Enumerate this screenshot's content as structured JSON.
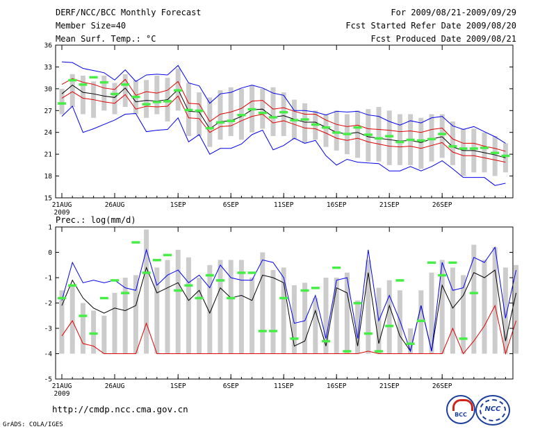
{
  "header": {
    "title": "DERF/NCC/BCC Monthly Forecast",
    "member": "Member Size=40",
    "variable": "Mean Surf. Temp.: °C",
    "period": "For 2009/08/21-2009/09/29",
    "started": "Fcst Started Refer Date 2009/08/20",
    "produced": "Fcst Produced Date 2009/08/21"
  },
  "footer": {
    "url": "http://cmdp.ncc.cma.gov.cn",
    "grads": "GrADS: COLA/IGES",
    "logo1_text": "BCC",
    "logo2_text": "NCC"
  },
  "colors": {
    "bar": "#cccccc",
    "mean": "#000000",
    "spread": "#e00000",
    "envelope": "#0000ee",
    "obs": "#44ee44"
  },
  "chart_data": [
    {
      "type": "line",
      "title": "Mean Surf. Temp.: °C",
      "ylim": [
        15,
        36
      ],
      "yticks": [
        "15",
        "18",
        "21",
        "24",
        "27",
        "30",
        "33",
        "36"
      ],
      "xticks": [
        {
          "day": 0,
          "label": "21AUG",
          "sub": "2009"
        },
        {
          "day": 5,
          "label": "26AUG"
        },
        {
          "day": 11,
          "label": "1SEP"
        },
        {
          "day": 16,
          "label": "6SEP"
        },
        {
          "day": 21,
          "label": "11SEP"
        },
        {
          "day": 26,
          "label": "16SEP"
        },
        {
          "day": 31,
          "label": "21SEP"
        },
        {
          "day": 36,
          "label": "26SEP"
        }
      ],
      "days": 40,
      "series": [
        {
          "name": "mean",
          "values": [
            29.3,
            30.5,
            29.5,
            29.3,
            29.0,
            28.8,
            30.1,
            28.2,
            28.4,
            28.3,
            28.5,
            29.9,
            26.9,
            26.8,
            24.5,
            25.5,
            25.6,
            26.2,
            27.1,
            27.2,
            26.1,
            26.3,
            25.8,
            25.4,
            25.4,
            24.7,
            24.0,
            23.8,
            24.0,
            23.4,
            23.2,
            23.0,
            22.8,
            22.9,
            22.6,
            23.1,
            23.4,
            22.0,
            21.5,
            21.5,
            21.2,
            20.9,
            20.5
          ]
        },
        {
          "name": "upper",
          "values": [
            30.6,
            31.4,
            30.9,
            30.6,
            30.1,
            29.9,
            31.3,
            29.1,
            29.6,
            29.4,
            29.8,
            31.0,
            28.0,
            27.9,
            25.5,
            26.5,
            26.8,
            27.3,
            28.3,
            28.4,
            27.2,
            27.4,
            26.9,
            26.5,
            26.5,
            25.7,
            25.1,
            24.8,
            25.0,
            24.5,
            24.4,
            24.3,
            24.1,
            24.2,
            24.0,
            24.4,
            24.6,
            23.1,
            22.5,
            22.5,
            22.1,
            21.8,
            21.4
          ]
        },
        {
          "name": "lower",
          "values": [
            28.7,
            29.6,
            28.7,
            28.5,
            28.2,
            28.0,
            29.2,
            27.2,
            27.6,
            27.5,
            27.6,
            29.0,
            26.0,
            25.9,
            24.0,
            24.8,
            24.9,
            25.6,
            26.2,
            26.5,
            25.3,
            25.6,
            25.1,
            24.6,
            24.5,
            23.9,
            23.2,
            22.9,
            23.2,
            22.7,
            22.4,
            22.1,
            22.0,
            22.1,
            21.8,
            22.2,
            22.6,
            21.3,
            20.8,
            20.8,
            20.5,
            20.2,
            19.9
          ]
        },
        {
          "name": "max",
          "values": [
            33.7,
            33.6,
            32.8,
            32.5,
            32.2,
            31.2,
            32.6,
            31.0,
            31.9,
            32.0,
            31.9,
            33.2,
            30.8,
            30.4,
            28.0,
            29.3,
            29.5,
            30.1,
            30.5,
            30.1,
            29.4,
            29.1,
            27.0,
            27.0,
            26.8,
            26.4,
            26.9,
            26.8,
            26.9,
            26.4,
            26.2,
            25.5,
            25.0,
            25.6,
            25.3,
            26.0,
            26.2,
            24.9,
            24.4,
            24.8,
            24.1,
            23.4,
            22.5
          ]
        },
        {
          "name": "min",
          "values": [
            26.2,
            27.6,
            24.0,
            24.5,
            25.1,
            25.7,
            26.5,
            26.6,
            24.1,
            24.3,
            24.4,
            26.0,
            22.7,
            23.7,
            21.0,
            21.8,
            21.8,
            22.4,
            23.7,
            24.3,
            21.6,
            22.2,
            23.2,
            22.5,
            22.9,
            20.8,
            19.5,
            20.3,
            19.9,
            19.8,
            19.7,
            18.7,
            18.7,
            19.3,
            18.7,
            19.3,
            20.1,
            19.0,
            17.8,
            17.8,
            17.8,
            16.7,
            17.0
          ]
        }
      ],
      "bars": {
        "max": [
          30.0,
          32.0,
          31.8,
          31.0,
          31.8,
          30.8,
          32.0,
          31.2,
          31.2,
          31.8,
          31.5,
          32.8,
          30.8,
          29.5,
          28.8,
          29.8,
          30.2,
          30.0,
          30.5,
          30.0,
          30.2,
          29.5,
          28.5,
          28.0,
          27.0,
          26.5,
          27.0,
          26.5,
          27.0,
          27.2,
          27.5,
          27.0,
          26.5,
          26.5,
          26.0,
          26.5,
          26.5,
          25.5,
          24.5,
          24.5,
          24.0,
          23.5,
          22.5
        ],
        "min": [
          26.5,
          27.5,
          26.5,
          26.0,
          27.0,
          26.5,
          27.5,
          26.5,
          26.0,
          26.5,
          25.5,
          27.0,
          23.5,
          23.5,
          22.0,
          23.0,
          23.5,
          23.0,
          24.0,
          24.5,
          23.5,
          23.5,
          23.0,
          22.5,
          23.0,
          22.0,
          21.5,
          21.0,
          20.5,
          20.0,
          20.0,
          19.5,
          19.5,
          19.5,
          19.0,
          20.0,
          20.5,
          19.5,
          18.0,
          18.5,
          18.5,
          18.0,
          18.5
        ]
      },
      "obs": [
        28.0,
        31.2,
        30.6,
        31.6,
        30.9,
        29.3,
        30.6,
        28.9,
        27.9,
        28.2,
        28.3,
        29.8,
        27.1,
        27.0,
        24.6,
        25.4,
        25.6,
        26.4,
        27.2,
        26.7,
        26.1,
        26.8,
        25.7,
        25.8,
        25.1,
        24.7,
        24.0,
        23.8,
        24.7,
        23.7,
        23.2,
        23.5,
        22.7,
        23.0,
        22.9,
        23.1,
        23.8,
        22.1,
        21.8,
        21.8,
        21.9,
        21.2,
        20.8
      ]
    },
    {
      "type": "line",
      "title": "Prec.: log(mm/d)",
      "ylim": [
        -5,
        1
      ],
      "yticks": [
        "-5",
        "-4",
        "-3",
        "-2",
        "-1",
        "0",
        "1"
      ],
      "xticks": [
        {
          "day": 0,
          "label": "21AUG",
          "sub": "2009"
        },
        {
          "day": 5,
          "label": "26AUG"
        },
        {
          "day": 11,
          "label": "1SEP"
        },
        {
          "day": 16,
          "label": "6SEP"
        },
        {
          "day": 21,
          "label": "11SEP"
        },
        {
          "day": 26,
          "label": "16SEP"
        },
        {
          "day": 31,
          "label": "21SEP"
        },
        {
          "day": 36,
          "label": "26SEP"
        }
      ],
      "days": 40,
      "series": [
        {
          "name": "mean",
          "values": [
            -2.1,
            -1.1,
            -1.8,
            -2.2,
            -2.4,
            -2.2,
            -2.3,
            -2.1,
            -0.6,
            -1.6,
            -1.4,
            -1.2,
            -1.9,
            -1.5,
            -2.4,
            -1.4,
            -1.8,
            -1.7,
            -1.9,
            -0.9,
            -1.0,
            -1.2,
            -3.7,
            -3.5,
            -2.3,
            -3.7,
            -1.4,
            -1.6,
            -3.7,
            -0.8,
            -3.6,
            -2.1,
            -3.3,
            -3.9,
            -2.1,
            -3.9,
            -1.3,
            -2.2,
            -1.7,
            -0.8,
            -1.0,
            -0.7,
            -3.5,
            -1.6
          ]
        },
        {
          "name": "max",
          "values": [
            -1.9,
            -0.4,
            -1.2,
            -1.1,
            -1.2,
            -1.1,
            -1.4,
            -1.5,
            0.1,
            -1.3,
            -0.9,
            -0.7,
            -1.2,
            -0.9,
            -1.4,
            -0.5,
            -1.0,
            -1.1,
            -1.1,
            -0.3,
            -0.4,
            -1.0,
            -2.8,
            -2.7,
            -1.7,
            -3.4,
            -1.1,
            -1.0,
            -3.4,
            0.1,
            -2.7,
            -1.7,
            -2.7,
            -3.9,
            -2.1,
            -3.9,
            -0.4,
            -1.5,
            -1.4,
            -0.2,
            -0.4,
            0.2,
            -2.6,
            -0.7
          ]
        },
        {
          "name": "low",
          "values": [
            -3.3,
            -2.7,
            -3.6,
            -3.7,
            -4.0,
            -4.0,
            -4.0,
            -4.0,
            -2.8,
            -4.0,
            -4.0,
            -4.0,
            -4.0,
            -4.0,
            -4.0,
            -4.0,
            -4.0,
            -4.0,
            -4.0,
            -4.0,
            -4.0,
            -4.0,
            -4.0,
            -4.0,
            -4.0,
            -4.0,
            -4.0,
            -4.0,
            -4.0,
            -3.9,
            -4.0,
            -4.0,
            -4.0,
            -4.0,
            -4.0,
            -4.0,
            -4.0,
            -3.0,
            -4.0,
            -3.5,
            -2.9,
            -2.1,
            -4.0,
            -2.7
          ]
        }
      ],
      "bars": {
        "max": [
          -1.5,
          -1.3,
          -2.0,
          -2.3,
          -2.5,
          -1.6,
          -1.0,
          -0.9,
          0.9,
          -0.6,
          -0.3,
          0.1,
          -0.2,
          -1.0,
          -0.5,
          -0.3,
          -0.3,
          -0.3,
          -1.0,
          0.0,
          -0.7,
          -0.6,
          -1.3,
          -1.2,
          -1.8,
          -1.0,
          -1.0,
          -0.8,
          -1.9,
          -0.3,
          -1.4,
          -1.1,
          -1.5,
          -3.0,
          -1.5,
          -0.8,
          -0.3,
          -0.6,
          -0.9,
          0.3,
          -0.3,
          0.2,
          -0.6,
          -0.5
        ],
        "min": [
          -4.0,
          -4.0,
          -4.0,
          -4.0,
          -4.0,
          -4.0,
          -4.0,
          -4.0,
          -4.0,
          -4.0,
          -4.0,
          -4.0,
          -4.0,
          -4.0,
          -4.0,
          -4.0,
          -4.0,
          -4.0,
          -4.0,
          -4.0,
          -4.0,
          -4.0,
          -4.0,
          -4.0,
          -4.0,
          -4.0,
          -4.0,
          -4.0,
          -4.0,
          -4.0,
          -4.0,
          -4.0,
          -4.0,
          -4.0,
          -4.0,
          -4.0,
          -4.0,
          -4.0,
          -4.0,
          -4.0,
          -4.0,
          -4.0,
          -4.0,
          -4.0
        ]
      },
      "obs": [
        -1.8,
        -1.3,
        -2.5,
        -3.2,
        -1.8,
        -1.1,
        -1.6,
        0.4,
        -0.8,
        -0.3,
        -0.1,
        -1.5,
        -1.3,
        -1.8,
        -0.9,
        -1.1,
        -1.8,
        -0.8,
        -0.8,
        -3.1,
        -3.1,
        -1.8,
        -3.4,
        -1.5,
        -1.4,
        -3.5,
        -0.6,
        -3.9,
        -2.0,
        -3.2,
        -3.9,
        -2.9,
        -1.1,
        -3.6,
        -2.7,
        -0.4,
        -0.9,
        -0.4,
        -3.4,
        -1.6
      ]
    }
  ]
}
